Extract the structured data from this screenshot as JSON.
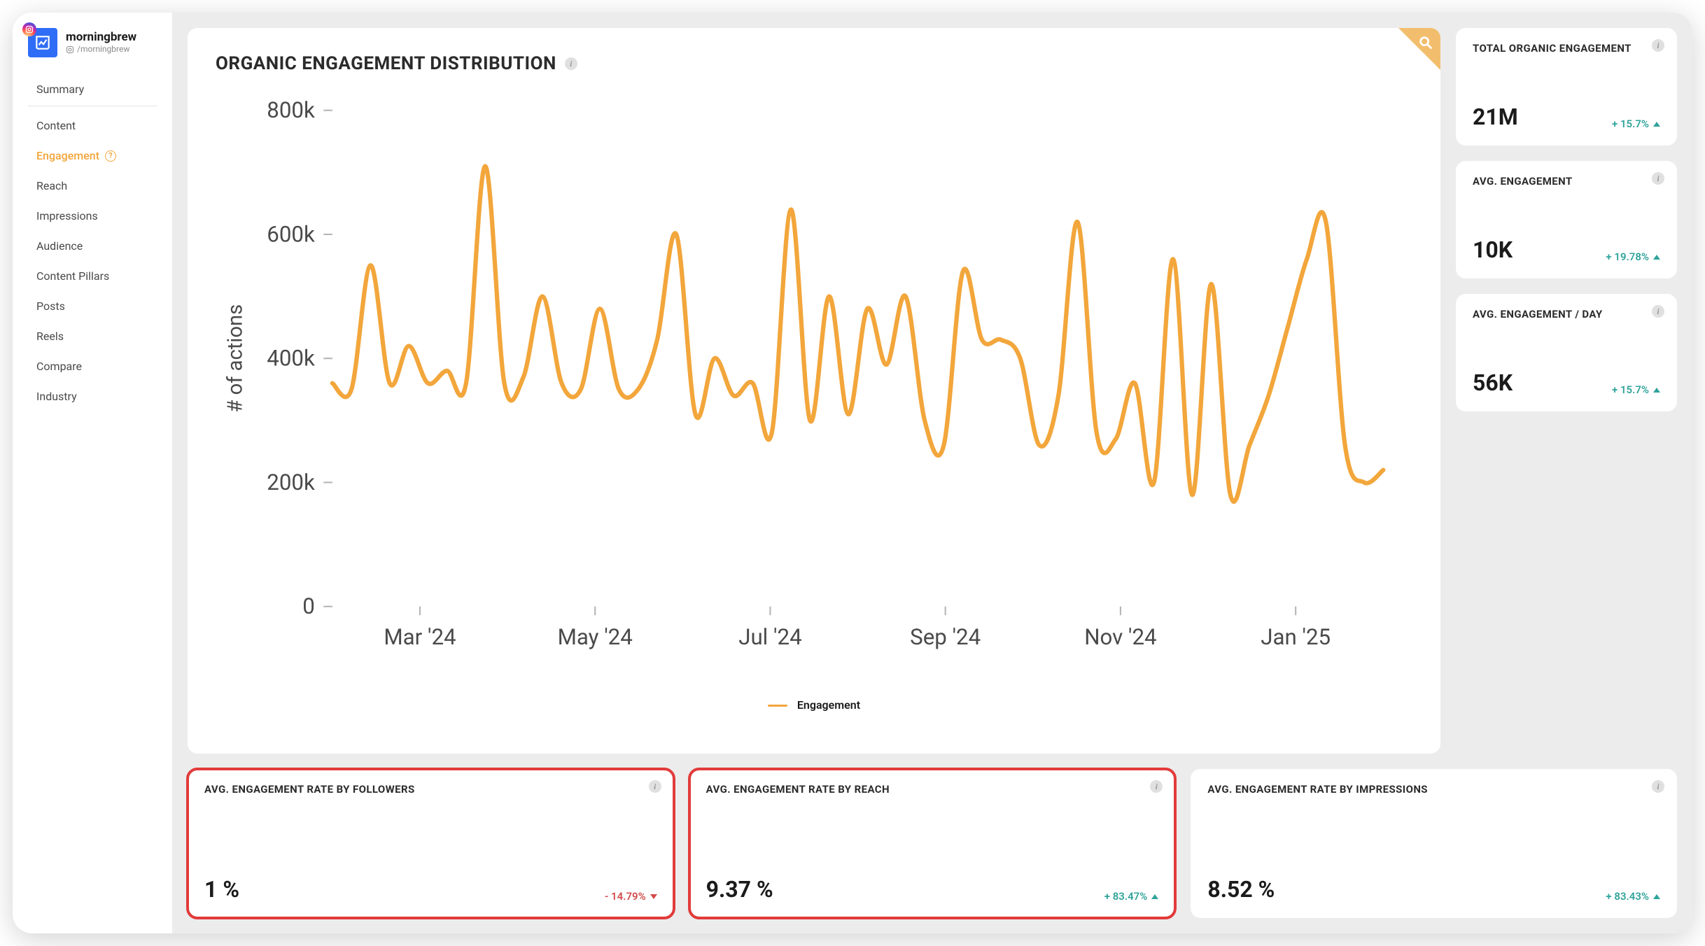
{
  "account": {
    "name": "morningbrew",
    "handle": "/morningbrew",
    "logo_bg": "#2f6df6",
    "badge_gradient": [
      "#fdf497",
      "#fd5949",
      "#d6249f",
      "#285AEB"
    ]
  },
  "nav": {
    "items": [
      {
        "label": "Summary",
        "active": false,
        "divider": true
      },
      {
        "label": "Content",
        "active": false,
        "divider": false
      },
      {
        "label": "Engagement",
        "active": true,
        "divider": false,
        "help": true
      },
      {
        "label": "Reach",
        "active": false,
        "divider": false
      },
      {
        "label": "Impressions",
        "active": false,
        "divider": false
      },
      {
        "label": "Audience",
        "active": false,
        "divider": false
      },
      {
        "label": "Content Pillars",
        "active": false,
        "divider": false
      },
      {
        "label": "Posts",
        "active": false,
        "divider": false
      },
      {
        "label": "Reels",
        "active": false,
        "divider": false
      },
      {
        "label": "Compare",
        "active": false,
        "divider": false
      },
      {
        "label": "Industry",
        "active": false,
        "divider": false
      }
    ],
    "active_color": "#f2a63b",
    "text_color": "#4a4a4a"
  },
  "chart": {
    "title": "ORGANIC ENGAGEMENT DISTRIBUTION",
    "type": "line",
    "y_axis_title": "# of actions",
    "legend_label": "Engagement",
    "line_color": "#f2a63b",
    "line_width": 3,
    "background_color": "#ffffff",
    "grid_color": "#f3f3f3",
    "ylim": [
      0,
      800000
    ],
    "ytick_step": 200000,
    "ytick_labels": [
      "0",
      "200k",
      "400k",
      "600k",
      "800k"
    ],
    "x_categories": [
      "Mar '24",
      "May '24",
      "Jul '24",
      "Sep '24",
      "Nov '24",
      "Jan '25"
    ],
    "series": {
      "name": "Engagement",
      "values": [
        360000,
        350000,
        550000,
        360000,
        420000,
        360000,
        380000,
        360000,
        710000,
        360000,
        370000,
        500000,
        360000,
        350000,
        480000,
        350000,
        350000,
        430000,
        600000,
        310000,
        400000,
        340000,
        360000,
        280000,
        640000,
        300000,
        500000,
        310000,
        480000,
        390000,
        500000,
        300000,
        260000,
        540000,
        430000,
        430000,
        400000,
        260000,
        340000,
        620000,
        280000,
        270000,
        360000,
        200000,
        560000,
        180000,
        520000,
        180000,
        260000,
        340000,
        450000,
        560000,
        620000,
        260000,
        200000,
        220000
      ]
    },
    "corner_flag_color": "#f2be6e",
    "tick_label_color": "#4a4a4a",
    "tick_label_fontsize": 15
  },
  "kpis_right": [
    {
      "title": "TOTAL ORGANIC ENGAGEMENT",
      "value": "21M",
      "delta": "+ 15.7%",
      "direction": "up"
    },
    {
      "title": "AVG. ENGAGEMENT",
      "value": "10K",
      "delta": "+ 19.78%",
      "direction": "up"
    },
    {
      "title": "AVG. ENGAGEMENT / DAY",
      "value": "56K",
      "delta": "+ 15.7%",
      "direction": "up"
    }
  ],
  "kpis_bottom": [
    {
      "title": "AVG. ENGAGEMENT RATE BY FOLLOWERS",
      "value": "1 %",
      "delta": "- 14.79%",
      "direction": "down",
      "highlight": true
    },
    {
      "title": "AVG. ENGAGEMENT RATE BY REACH",
      "value": "9.37 %",
      "delta": "+ 83.47%",
      "direction": "up",
      "highlight": true
    },
    {
      "title": "AVG. ENGAGEMENT RATE BY IMPRESSIONS",
      "value": "8.52 %",
      "delta": "+ 83.43%",
      "direction": "up",
      "highlight": false
    }
  ],
  "colors": {
    "panel_bg": "#ececec",
    "card_bg": "#ffffff",
    "delta_pos": "#2fa39a",
    "delta_neg": "#d24a4a",
    "highlight_border": "#e23b3b",
    "info_dot_bg": "#e0e0e0",
    "info_dot_fg": "#9a9a9a"
  }
}
